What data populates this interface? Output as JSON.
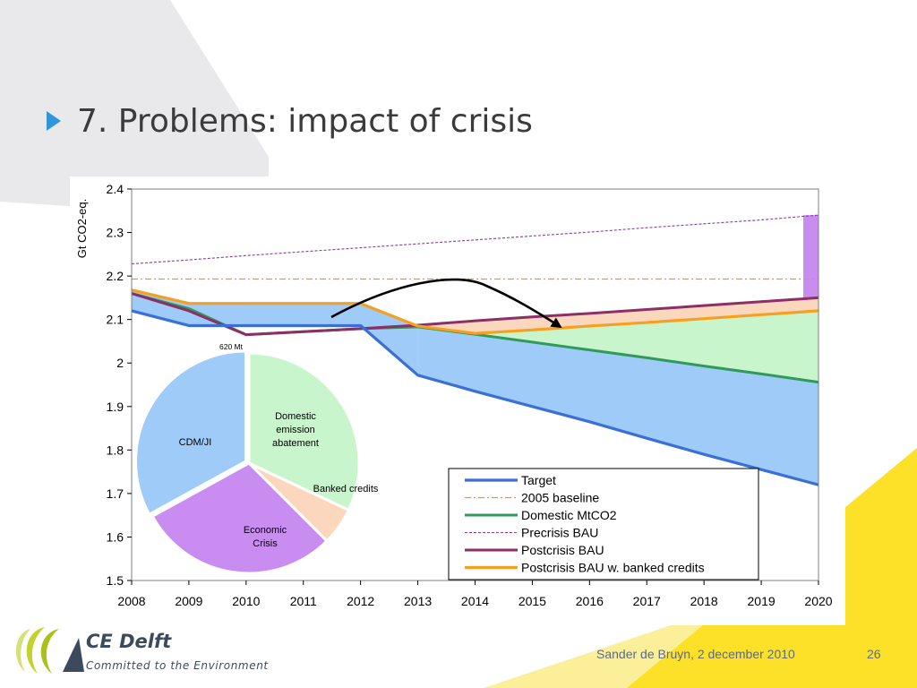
{
  "slide": {
    "title": "7. Problems: impact of crisis",
    "footer": {
      "author_date": "Sander de Bruyn, 2 december 2010",
      "page_number": "26"
    }
  },
  "logo": {
    "name": "CE Delft",
    "tagline": "Committed to the Environment"
  },
  "colors": {
    "target": "#3a6fd8",
    "baseline": "#e6953a",
    "domestic": "#2f9a5a",
    "precrisis": "#8a3a9a",
    "postcrisis": "#8e2e66",
    "postcrisis_banked": "#f5a020",
    "fill_blue": "#9ecbf8",
    "fill_green": "#c8f5cc",
    "fill_peach": "#fbd8bd",
    "fill_purple": "#c98cf0"
  },
  "chart_data": {
    "type": "line",
    "ylabel": "Gt CO2-eq.",
    "x": [
      2008,
      2009,
      2010,
      2011,
      2012,
      2013,
      2014,
      2015,
      2016,
      2017,
      2018,
      2019,
      2020
    ],
    "ylim": [
      1.5,
      2.4
    ],
    "yticks": [
      "1.5",
      "1.6",
      "1.7",
      "1.8",
      "1.9",
      "2",
      "2.1",
      "2.2",
      "2.3",
      "2.4"
    ],
    "series": [
      {
        "name": "Target",
        "values": [
          2.12,
          2.086,
          2.086,
          2.086,
          2.086,
          1.972,
          1.935,
          1.9,
          1.865,
          1.827,
          1.79,
          1.755,
          1.72
        ]
      },
      {
        "name": "2005 baseline",
        "values": [
          2.193,
          2.193,
          2.193,
          2.193,
          2.193,
          2.193,
          2.193,
          2.193,
          2.193,
          2.193,
          2.193,
          2.193,
          2.193
        ]
      },
      {
        "name": "Domestic MtCO2",
        "values": [
          2.16,
          2.125,
          2.065,
          2.072,
          2.079,
          2.083,
          2.066,
          2.048,
          2.03,
          2.012,
          1.993,
          1.975,
          1.956
        ]
      },
      {
        "name": "Precrisis BAU",
        "values": [
          2.228,
          2.237,
          2.247,
          2.256,
          2.265,
          2.274,
          2.283,
          2.292,
          2.301,
          2.311,
          2.32,
          2.329,
          2.34
        ]
      },
      {
        "name": "Postcrisis BAU",
        "values": [
          2.16,
          2.12,
          2.065,
          2.072,
          2.079,
          2.087,
          2.097,
          2.106,
          2.114,
          2.123,
          2.132,
          2.141,
          2.15
        ]
      },
      {
        "name": "Postcrisis BAU w. banked credits",
        "values": [
          2.168,
          2.137,
          2.137,
          2.137,
          2.137,
          2.085,
          2.068,
          2.076,
          2.085,
          2.093,
          2.102,
          2.111,
          2.12
        ]
      }
    ],
    "annotations": {
      "bar_label": "620 Mt"
    },
    "pie": {
      "slices": [
        {
          "label": "Domestic emission abatement",
          "lines": [
            "Domestic",
            "emission",
            "abatement"
          ],
          "value": 0.32,
          "color": "#c8f5cc"
        },
        {
          "label": "Banked credits",
          "lines": [
            "Banked credits"
          ],
          "value": 0.055,
          "color": "#fbd8bd"
        },
        {
          "label": "Economic Crisis",
          "lines": [
            "Economic",
            "Crisis"
          ],
          "value": 0.295,
          "color": "#c98cf0"
        },
        {
          "label": "CDM/JI",
          "lines": [
            "CDM/JI"
          ],
          "value": 0.33,
          "color": "#9ecbf8"
        }
      ]
    }
  }
}
